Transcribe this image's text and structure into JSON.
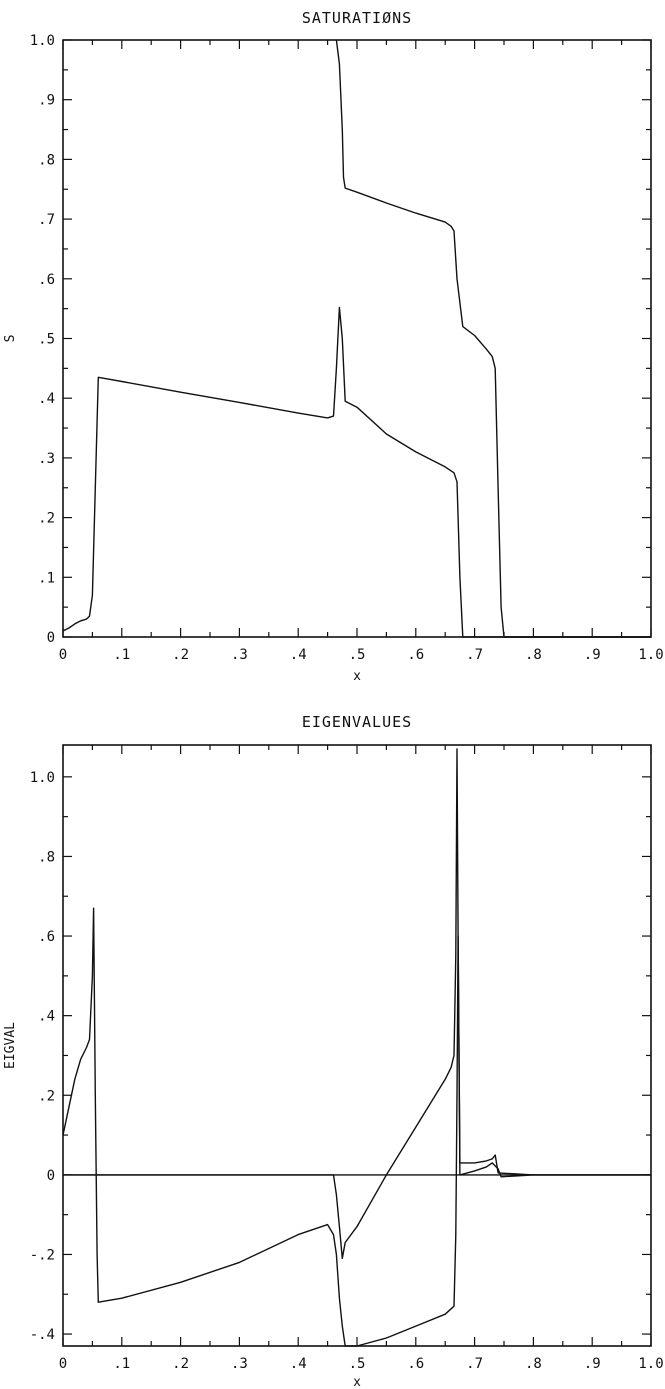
{
  "chart_data": [
    {
      "type": "line",
      "title": "SATURATIØNS",
      "xlabel": "x",
      "ylabel": "S",
      "xlim": [
        0,
        1.0
      ],
      "ylim": [
        0,
        1.0
      ],
      "grid": false,
      "xticks": [
        0,
        0.1,
        0.2,
        0.3,
        0.4,
        0.5,
        0.6,
        0.7,
        0.8,
        0.9,
        1.0
      ],
      "xtick_labels": [
        "0",
        ".1",
        ".2",
        ".3",
        ".4",
        ".5",
        ".6",
        ".7",
        ".8",
        ".9",
        "1.0"
      ],
      "yticks": [
        0,
        0.1,
        0.2,
        0.3,
        0.4,
        0.5,
        0.6,
        0.7,
        0.8,
        0.9,
        1.0
      ],
      "ytick_labels": [
        "0",
        ".1",
        ".2",
        ".3",
        ".4",
        ".5",
        ".6",
        ".7",
        ".8",
        ".9",
        "1.0"
      ],
      "series": [
        {
          "x": [
            0.0,
            0.01,
            0.02,
            0.03,
            0.04,
            0.045,
            0.05,
            0.055,
            0.06,
            0.1,
            0.2,
            0.3,
            0.4,
            0.45,
            0.46,
            0.465,
            0.47,
            0.475,
            0.48,
            0.5,
            0.55,
            0.6,
            0.65,
            0.665,
            0.67,
            0.675,
            0.68,
            0.7,
            0.8,
            0.9,
            1.0
          ],
          "y": [
            0.01,
            0.015,
            0.022,
            0.027,
            0.03,
            0.035,
            0.07,
            0.25,
            0.435,
            0.428,
            0.41,
            0.393,
            0.375,
            0.367,
            0.37,
            0.45,
            0.552,
            0.5,
            0.395,
            0.385,
            0.34,
            0.31,
            0.285,
            0.275,
            0.26,
            0.1,
            0.0,
            0.0,
            0.0,
            0.0,
            0.0
          ]
        },
        {
          "x": [
            0.465,
            0.47,
            0.475,
            0.477,
            0.48,
            0.5,
            0.55,
            0.6,
            0.65,
            0.66,
            0.665,
            0.67,
            0.68,
            0.7,
            0.72,
            0.73,
            0.735,
            0.74,
            0.745,
            0.75,
            0.8,
            0.9,
            1.0
          ],
          "y": [
            1.0,
            0.96,
            0.85,
            0.77,
            0.752,
            0.745,
            0.727,
            0.71,
            0.695,
            0.688,
            0.68,
            0.6,
            0.52,
            0.505,
            0.482,
            0.47,
            0.45,
            0.25,
            0.05,
            0.0,
            0.0,
            0.0,
            0.0
          ]
        }
      ]
    },
    {
      "type": "line",
      "title": "EIGENVALUES",
      "xlabel": "x",
      "ylabel": "EIGVAL",
      "xlim": [
        0,
        1.0
      ],
      "ylim": [
        -0.43,
        1.08
      ],
      "grid": false,
      "xticks": [
        0,
        0.1,
        0.2,
        0.3,
        0.4,
        0.5,
        0.6,
        0.7,
        0.8,
        0.9,
        1.0
      ],
      "xtick_labels": [
        "0",
        ".1",
        ".2",
        ".3",
        ".4",
        ".5",
        ".6",
        ".7",
        ".8",
        ".9",
        "1.0"
      ],
      "yticks": [
        -0.4,
        -0.2,
        0,
        0.2,
        0.4,
        0.6,
        0.8,
        1.0
      ],
      "ytick_labels": [
        "-.4",
        "-.2",
        "0",
        ".2",
        ".4",
        ".6",
        ".8",
        "1.0"
      ],
      "series": [
        {
          "x": [
            0.0,
            0.01,
            0.02,
            0.03,
            0.04,
            0.045,
            0.05,
            0.052,
            0.055,
            0.058,
            0.06,
            0.1,
            0.2,
            0.3,
            0.4,
            0.45,
            0.46,
            0.465,
            0.47,
            0.475,
            0.48,
            0.5,
            0.55,
            0.6,
            0.65,
            0.665,
            0.668,
            0.67,
            0.672,
            0.675,
            0.7,
            0.72,
            0.73,
            0.735,
            0.74,
            0.8,
            0.9,
            1.0
          ],
          "y": [
            0.1,
            0.17,
            0.24,
            0.29,
            0.32,
            0.34,
            0.5,
            0.67,
            0.2,
            -0.2,
            -0.32,
            -0.31,
            -0.27,
            -0.22,
            -0.15,
            -0.125,
            -0.15,
            -0.2,
            -0.31,
            -0.38,
            -0.43,
            -0.43,
            -0.41,
            -0.38,
            -0.35,
            -0.33,
            -0.15,
            0.2,
            0.6,
            0.03,
            0.03,
            0.035,
            0.04,
            0.05,
            0.005,
            0.0,
            0.0,
            0.0
          ]
        },
        {
          "x": [
            0.0,
            0.05,
            0.1,
            0.2,
            0.3,
            0.4,
            0.46,
            0.465,
            0.47,
            0.475,
            0.48,
            0.5,
            0.55,
            0.6,
            0.65,
            0.66,
            0.665,
            0.668,
            0.67,
            0.672,
            0.675,
            0.7,
            0.72,
            0.73,
            0.74,
            0.745,
            0.8,
            0.9,
            1.0
          ],
          "y": [
            0.0,
            0.0,
            0.0,
            0.0,
            0.0,
            0.0,
            0.0,
            -0.05,
            -0.13,
            -0.21,
            -0.17,
            -0.13,
            0.0,
            0.12,
            0.24,
            0.27,
            0.3,
            0.55,
            1.07,
            0.6,
            0.0,
            0.01,
            0.02,
            0.03,
            0.015,
            -0.005,
            0.0,
            0.0,
            0.0
          ]
        },
        {
          "x": [
            0.0,
            1.0
          ],
          "y": [
            0.0,
            0.0
          ]
        }
      ]
    }
  ]
}
